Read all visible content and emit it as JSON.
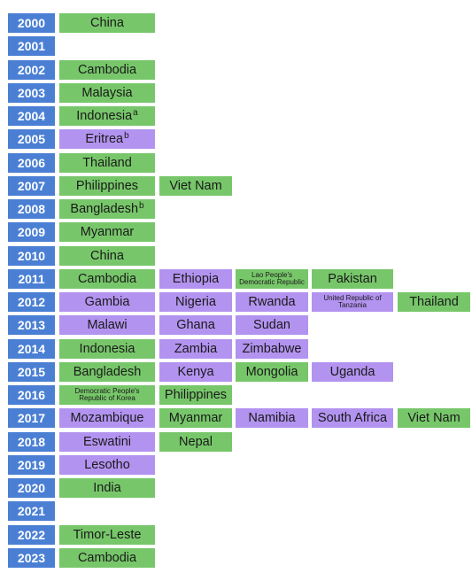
{
  "colors": {
    "year": "#4a7fd4",
    "green": "#77c76a",
    "purple": "#b393f0"
  },
  "rows": [
    {
      "year": "2000",
      "cells": [
        {
          "label": "China",
          "color": "green"
        }
      ]
    },
    {
      "year": "2001",
      "cells": []
    },
    {
      "year": "2002",
      "cells": [
        {
          "label": "Cambodia",
          "color": "green"
        }
      ]
    },
    {
      "year": "2003",
      "cells": [
        {
          "label": "Malaysia",
          "color": "green"
        }
      ]
    },
    {
      "year": "2004",
      "cells": [
        {
          "label": "Indonesia",
          "sup": "a",
          "color": "green"
        }
      ]
    },
    {
      "year": "2005",
      "cells": [
        {
          "label": "Eritrea",
          "sup": "b",
          "color": "purple"
        }
      ]
    },
    {
      "year": "2006",
      "cells": [
        {
          "label": "Thailand",
          "color": "green"
        }
      ]
    },
    {
      "year": "2007",
      "cells": [
        {
          "label": "Philippines",
          "color": "green"
        },
        {
          "label": "Viet Nam",
          "color": "green"
        }
      ]
    },
    {
      "year": "2008",
      "cells": [
        {
          "label": "Bangladesh",
          "sup": "b",
          "color": "green"
        }
      ]
    },
    {
      "year": "2009",
      "cells": [
        {
          "label": "Myanmar",
          "color": "green"
        }
      ]
    },
    {
      "year": "2010",
      "cells": [
        {
          "label": "China",
          "color": "green"
        }
      ]
    },
    {
      "year": "2011",
      "cells": [
        {
          "label": "Cambodia",
          "color": "green"
        },
        {
          "label": "Ethiopia",
          "color": "purple"
        },
        {
          "label": "Lao People's Democratic Republic",
          "color": "green",
          "small": true
        },
        {
          "label": "Pakistan",
          "color": "green"
        }
      ]
    },
    {
      "year": "2012",
      "cells": [
        {
          "label": "Gambia",
          "color": "purple"
        },
        {
          "label": "Nigeria",
          "color": "purple"
        },
        {
          "label": "Rwanda",
          "color": "purple"
        },
        {
          "label": "United Republic of Tanzania",
          "color": "purple",
          "small": true
        },
        {
          "label": "Thailand",
          "color": "green"
        }
      ]
    },
    {
      "year": "2013",
      "cells": [
        {
          "label": "Malawi",
          "color": "purple"
        },
        {
          "label": "Ghana",
          "color": "purple"
        },
        {
          "label": "Sudan",
          "color": "purple"
        }
      ]
    },
    {
      "year": "2014",
      "cells": [
        {
          "label": "Indonesia",
          "color": "green"
        },
        {
          "label": "Zambia",
          "color": "purple"
        },
        {
          "label": "Zimbabwe",
          "color": "purple"
        }
      ]
    },
    {
      "year": "2015",
      "cells": [
        {
          "label": "Bangladesh",
          "color": "green"
        },
        {
          "label": "Kenya",
          "color": "purple"
        },
        {
          "label": "Mongolia",
          "color": "green"
        },
        {
          "label": "Uganda",
          "color": "purple"
        }
      ]
    },
    {
      "year": "2016",
      "cells": [
        {
          "label": "Democratic People's Republic of Korea",
          "color": "green",
          "small": true
        },
        {
          "label": "Philippines",
          "color": "green"
        }
      ]
    },
    {
      "year": "2017",
      "cells": [
        {
          "label": "Mozambique",
          "color": "purple"
        },
        {
          "label": "Myanmar",
          "color": "green"
        },
        {
          "label": "Namibia",
          "color": "purple"
        },
        {
          "label": "South Africa",
          "color": "purple"
        },
        {
          "label": "Viet Nam",
          "color": "green"
        }
      ]
    },
    {
      "year": "2018",
      "cells": [
        {
          "label": "Eswatini",
          "color": "purple"
        },
        {
          "label": "Nepal",
          "color": "green"
        }
      ]
    },
    {
      "year": "2019",
      "cells": [
        {
          "label": "Lesotho",
          "color": "purple"
        }
      ]
    },
    {
      "year": "2020",
      "cells": [
        {
          "label": "India",
          "color": "green"
        }
      ]
    },
    {
      "year": "2021",
      "cells": []
    },
    {
      "year": "2022",
      "cells": [
        {
          "label": "Timor-Leste",
          "color": "green"
        }
      ]
    },
    {
      "year": "2023",
      "cells": [
        {
          "label": "Cambodia",
          "color": "green"
        }
      ]
    }
  ]
}
